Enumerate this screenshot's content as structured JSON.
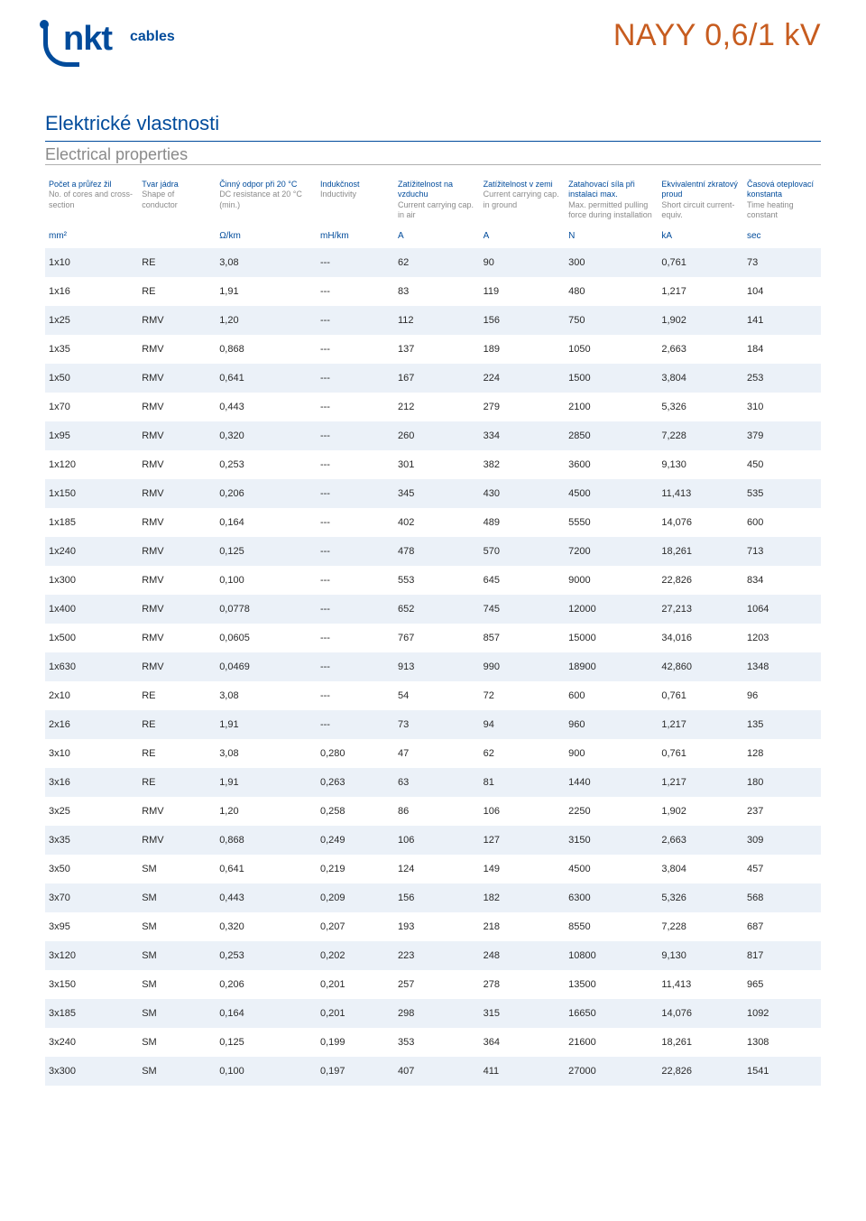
{
  "brand": {
    "name": "nkt",
    "sub": "cables"
  },
  "product_title": "NAYY 0,6/1 kV",
  "section": {
    "title_cz": "Elektrické vlastnosti",
    "title_en": "Electrical properties"
  },
  "colors": {
    "primary_blue": "#004b9b",
    "accent_orange": "#c75c1f",
    "text_grey": "#8a8a8a",
    "body_text": "#2a2a2a",
    "row_alt_bg": "#ebf1f8",
    "background": "#ffffff"
  },
  "typography": {
    "font_family": "Arial, Helvetica, sans-serif",
    "product_title_size_pt": 26,
    "section_title_cz_size_pt": 17,
    "section_title_en_size_pt": 14,
    "header_size_pt": 7,
    "body_size_pt": 8.5
  },
  "table": {
    "type": "table",
    "column_widths_pct": [
      12,
      10,
      13,
      10,
      11,
      11,
      12,
      11,
      10
    ],
    "columns": [
      {
        "cz": "Počet a průřez žil",
        "en": "No. of cores and cross-section",
        "unit": "mm²"
      },
      {
        "cz": "Tvar jádra",
        "en": "Shape of conductor",
        "unit": ""
      },
      {
        "cz": "Činný odpor při 20 °C",
        "en": "DC resistance at 20 °C (min.)",
        "unit": "Ω/km"
      },
      {
        "cz": "Indukčnost",
        "en": "Inductivity",
        "unit": "mH/km"
      },
      {
        "cz": "Zatížitelnost na vzduchu",
        "en": "Current carrying cap. in air",
        "unit": "A"
      },
      {
        "cz": "Zatížitelnost v zemi",
        "en": "Current carrying cap. in ground",
        "unit": "A"
      },
      {
        "cz": "Zatahovací síla při instalaci max.",
        "en": "Max. permitted pulling force during installation",
        "unit": "N"
      },
      {
        "cz": "Ekvivalentní zkratový proud",
        "en": "Short circuit current-equiv.",
        "unit": "kA"
      },
      {
        "cz": "Časová oteplovací konstanta",
        "en": "Time heating constant",
        "unit": "sec"
      }
    ],
    "rows": [
      [
        "1x10",
        "RE",
        "3,08",
        "---",
        "62",
        "90",
        "300",
        "0,761",
        "73"
      ],
      [
        "1x16",
        "RE",
        "1,91",
        "---",
        "83",
        "119",
        "480",
        "1,217",
        "104"
      ],
      [
        "1x25",
        "RMV",
        "1,20",
        "---",
        "112",
        "156",
        "750",
        "1,902",
        "141"
      ],
      [
        "1x35",
        "RMV",
        "0,868",
        "---",
        "137",
        "189",
        "1050",
        "2,663",
        "184"
      ],
      [
        "1x50",
        "RMV",
        "0,641",
        "---",
        "167",
        "224",
        "1500",
        "3,804",
        "253"
      ],
      [
        "1x70",
        "RMV",
        "0,443",
        "---",
        "212",
        "279",
        "2100",
        "5,326",
        "310"
      ],
      [
        "1x95",
        "RMV",
        "0,320",
        "---",
        "260",
        "334",
        "2850",
        "7,228",
        "379"
      ],
      [
        "1x120",
        "RMV",
        "0,253",
        "---",
        "301",
        "382",
        "3600",
        "9,130",
        "450"
      ],
      [
        "1x150",
        "RMV",
        "0,206",
        "---",
        "345",
        "430",
        "4500",
        "11,413",
        "535"
      ],
      [
        "1x185",
        "RMV",
        "0,164",
        "---",
        "402",
        "489",
        "5550",
        "14,076",
        "600"
      ],
      [
        "1x240",
        "RMV",
        "0,125",
        "---",
        "478",
        "570",
        "7200",
        "18,261",
        "713"
      ],
      [
        "1x300",
        "RMV",
        "0,100",
        "---",
        "553",
        "645",
        "9000",
        "22,826",
        "834"
      ],
      [
        "1x400",
        "RMV",
        "0,0778",
        "---",
        "652",
        "745",
        "12000",
        "27,213",
        "1064"
      ],
      [
        "1x500",
        "RMV",
        "0,0605",
        "---",
        "767",
        "857",
        "15000",
        "34,016",
        "1203"
      ],
      [
        "1x630",
        "RMV",
        "0,0469",
        "---",
        "913",
        "990",
        "18900",
        "42,860",
        "1348"
      ],
      [
        "2x10",
        "RE",
        "3,08",
        "---",
        "54",
        "72",
        "600",
        "0,761",
        "96"
      ],
      [
        "2x16",
        "RE",
        "1,91",
        "---",
        "73",
        "94",
        "960",
        "1,217",
        "135"
      ],
      [
        "3x10",
        "RE",
        "3,08",
        "0,280",
        "47",
        "62",
        "900",
        "0,761",
        "128"
      ],
      [
        "3x16",
        "RE",
        "1,91",
        "0,263",
        "63",
        "81",
        "1440",
        "1,217",
        "180"
      ],
      [
        "3x25",
        "RMV",
        "1,20",
        "0,258",
        "86",
        "106",
        "2250",
        "1,902",
        "237"
      ],
      [
        "3x35",
        "RMV",
        "0,868",
        "0,249",
        "106",
        "127",
        "3150",
        "2,663",
        "309"
      ],
      [
        "3x50",
        "SM",
        "0,641",
        "0,219",
        "124",
        "149",
        "4500",
        "3,804",
        "457"
      ],
      [
        "3x70",
        "SM",
        "0,443",
        "0,209",
        "156",
        "182",
        "6300",
        "5,326",
        "568"
      ],
      [
        "3x95",
        "SM",
        "0,320",
        "0,207",
        "193",
        "218",
        "8550",
        "7,228",
        "687"
      ],
      [
        "3x120",
        "SM",
        "0,253",
        "0,202",
        "223",
        "248",
        "10800",
        "9,130",
        "817"
      ],
      [
        "3x150",
        "SM",
        "0,206",
        "0,201",
        "257",
        "278",
        "13500",
        "11,413",
        "965"
      ],
      [
        "3x185",
        "SM",
        "0,164",
        "0,201",
        "298",
        "315",
        "16650",
        "14,076",
        "1092"
      ],
      [
        "3x240",
        "SM",
        "0,125",
        "0,199",
        "353",
        "364",
        "21600",
        "18,261",
        "1308"
      ],
      [
        "3x300",
        "SM",
        "0,100",
        "0,197",
        "407",
        "411",
        "27000",
        "22,826",
        "1541"
      ]
    ]
  }
}
